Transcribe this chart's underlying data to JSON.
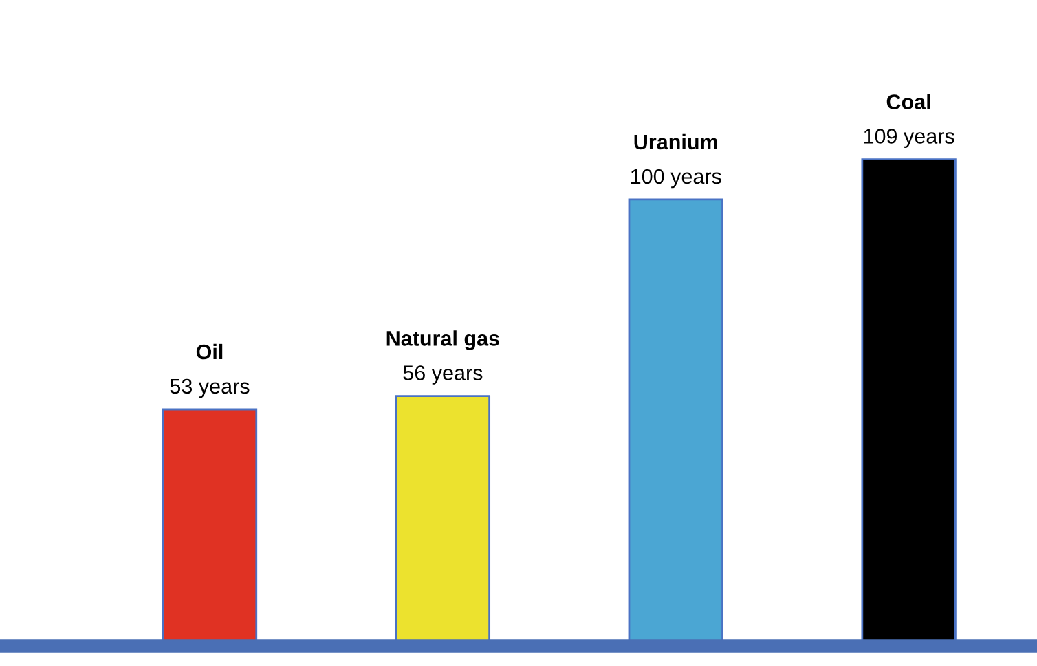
{
  "chart_data": {
    "type": "bar",
    "categories": [
      "Oil",
      "Natural gas",
      "Uranium",
      "Coal"
    ],
    "values": [
      53,
      56,
      100,
      109
    ],
    "colors": [
      "#e03223",
      "#ece22e",
      "#4ba6d3",
      "#000000"
    ],
    "value_labels": [
      "53 years",
      "56 years",
      "100 years",
      "109 years"
    ],
    "legend": false
  }
}
